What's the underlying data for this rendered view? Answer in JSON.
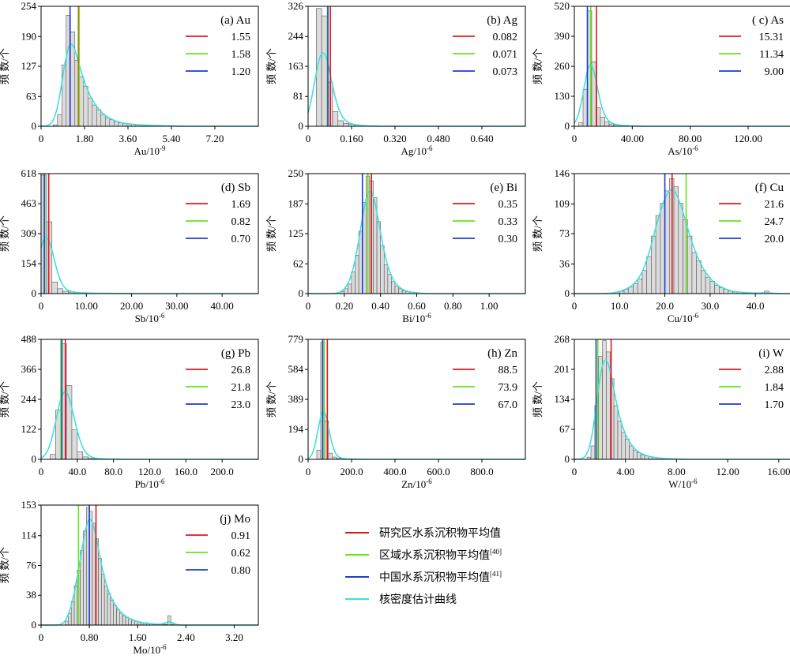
{
  "colors": {
    "study_mean": "#e8141c",
    "regional_mean": "#66e61a",
    "china_mean": "#1c3cd6",
    "kde": "#3ee0e0",
    "bar_fill": "#dcdcdc",
    "bar_stroke": "#555555"
  },
  "figure_legend": {
    "study_mean": "研究区水系沉积物平均值",
    "regional_mean": "区域水系沉积物平均值",
    "regional_ref": "[40]",
    "china_mean": "中国水系沉积物平均值",
    "china_ref": "[41]",
    "kde": "核密度估计曲线"
  },
  "chart_data": [
    {
      "type": "bar",
      "title": "(a) Au",
      "xlabel_base": "Au/10",
      "xlabel_exp": "-9",
      "ylabel": "频 数/个",
      "xlim": [
        0,
        9.0
      ],
      "ylim": [
        0,
        254
      ],
      "xticks": [
        "0",
        "1.80",
        "3.60",
        "5.40",
        "7.20"
      ],
      "xtick_values": [
        0,
        1.8,
        3.6,
        5.4,
        7.2
      ],
      "yticks": [
        "0",
        "63",
        "127",
        "190",
        "254"
      ],
      "ytick_values": [
        0,
        63,
        127,
        190,
        254
      ],
      "bin_start": 0.5,
      "bin_width": 0.18,
      "counts": [
        3,
        25,
        130,
        235,
        200,
        140,
        105,
        85,
        60,
        45,
        35,
        25,
        18,
        14,
        10,
        7,
        6,
        5,
        4,
        3,
        3,
        2,
        2,
        2,
        1,
        1,
        1,
        1
      ],
      "means": {
        "study": 1.55,
        "regional": 1.58,
        "china": 1.2
      },
      "mean_labels": [
        "1.55",
        "1.58",
        "1.20"
      ]
    },
    {
      "type": "bar",
      "title": "(b) Ag",
      "xlabel_base": "Ag/10",
      "xlabel_exp": "-6",
      "ylabel": "频 数/个",
      "xlim": [
        0,
        0.8
      ],
      "ylim": [
        0,
        326
      ],
      "xticks": [
        "0",
        "0.160",
        "0.320",
        "0.480",
        "0.640"
      ],
      "xtick_values": [
        0,
        0.16,
        0.32,
        0.48,
        0.64
      ],
      "yticks": [
        "0",
        "81",
        "163",
        "244",
        "326"
      ],
      "ytick_values": [
        0,
        81,
        163,
        244,
        326
      ],
      "bin_start": 0.03,
      "bin_width": 0.02,
      "counts": [
        320,
        300,
        120,
        40,
        15,
        8,
        5,
        3,
        2,
        1
      ],
      "means": {
        "study": 0.082,
        "regional": 0.071,
        "china": 0.073
      },
      "mean_labels": [
        "0.082",
        "0.071",
        "0.073"
      ]
    },
    {
      "type": "bar",
      "title": "( c) As",
      "xlabel_base": "As/10",
      "xlabel_exp": "-6",
      "ylabel": "频 数/个",
      "xlim": [
        0,
        150
      ],
      "ylim": [
        0,
        520
      ],
      "xticks": [
        "0",
        "40.00",
        "80.00",
        "120.00"
      ],
      "xtick_values": [
        0,
        40,
        80,
        120
      ],
      "yticks": [
        "0",
        "130",
        "260",
        "390",
        "520"
      ],
      "ytick_values": [
        0,
        130,
        260,
        390,
        520
      ],
      "bin_start": 3,
      "bin_width": 3,
      "counts": [
        15,
        160,
        500,
        280,
        80,
        40,
        20,
        10,
        6,
        4,
        3,
        2,
        1,
        1
      ],
      "means": {
        "study": 15.31,
        "regional": 11.34,
        "china": 9.0
      },
      "mean_labels": [
        "15.31",
        "11.34",
        "9.00"
      ]
    },
    {
      "type": "bar",
      "title": "(d) Sb",
      "xlabel_base": "Sb/10",
      "xlabel_exp": "-6",
      "ylabel": "频 数/个",
      "xlim": [
        0,
        48
      ],
      "ylim": [
        0,
        618
      ],
      "xticks": [
        "0",
        "10.00",
        "20.00",
        "30.00",
        "40.00"
      ],
      "xtick_values": [
        0,
        10,
        20,
        30,
        40
      ],
      "yticks": [
        "0",
        "154",
        "309",
        "463",
        "618"
      ],
      "ytick_values": [
        0,
        154,
        309,
        463,
        618
      ],
      "bin_start": 0,
      "bin_width": 1.2,
      "counts": [
        610,
        370,
        60,
        25,
        12,
        8,
        5,
        4,
        3,
        2,
        2,
        1,
        1,
        1,
        1,
        1
      ],
      "means": {
        "study": 1.69,
        "regional": 0.82,
        "china": 0.7
      },
      "mean_labels": [
        "1.69",
        "0.82",
        "0.70"
      ]
    },
    {
      "type": "bar",
      "title": "(e) Bi",
      "xlabel_base": "Bi/10",
      "xlabel_exp": "-6",
      "ylabel": "频 数/个",
      "xlim": [
        0,
        1.2
      ],
      "ylim": [
        0,
        250
      ],
      "xticks": [
        "0",
        "0.20",
        "0.40",
        "0.60",
        "0.80",
        "1.00"
      ],
      "xtick_values": [
        0,
        0.2,
        0.4,
        0.6,
        0.8,
        1.0
      ],
      "yticks": [
        "0",
        "62",
        "125",
        "187",
        "250"
      ],
      "ytick_values": [
        0,
        62,
        125,
        187,
        250
      ],
      "bin_start": 0.18,
      "bin_width": 0.02,
      "counts": [
        4,
        10,
        20,
        45,
        80,
        130,
        190,
        245,
        235,
        200,
        150,
        100,
        60,
        40,
        25,
        15,
        10,
        6,
        4,
        3,
        2,
        1
      ],
      "means": {
        "study": 0.35,
        "regional": 0.33,
        "china": 0.3
      },
      "mean_labels": [
        "0.35",
        "0.33",
        "0.30"
      ]
    },
    {
      "type": "bar",
      "title": "(f) Cu",
      "xlabel_base": "Cu/10",
      "xlabel_exp": "-6",
      "ylabel": "频 数/个",
      "xlim": [
        0,
        48
      ],
      "ylim": [
        0,
        146
      ],
      "xticks": [
        "0",
        "10.0",
        "20.0",
        "30.0",
        "40.0"
      ],
      "xtick_values": [
        0,
        10,
        20,
        30,
        40
      ],
      "yticks": [
        "0",
        "36",
        "73",
        "109",
        "146"
      ],
      "ytick_values": [
        0,
        36,
        73,
        109,
        146
      ],
      "bin_start": 9,
      "bin_width": 1,
      "counts": [
        2,
        3,
        5,
        8,
        12,
        18,
        28,
        45,
        70,
        95,
        110,
        125,
        140,
        130,
        110,
        90,
        70,
        50,
        40,
        28,
        20,
        15,
        10,
        7,
        5,
        3,
        2,
        2,
        1,
        1,
        1,
        0,
        0,
        3
      ],
      "means": {
        "study": 21.6,
        "regional": 24.7,
        "china": 20.0
      },
      "mean_labels": [
        "21.6",
        "24.7",
        "20.0"
      ]
    },
    {
      "type": "bar",
      "title": "(g) Pb",
      "xlabel_base": "Pb/10",
      "xlabel_exp": "-6",
      "ylabel": "频 数/个",
      "xlim": [
        0,
        240
      ],
      "ylim": [
        0,
        488
      ],
      "xticks": [
        "0",
        "40.0",
        "80.0",
        "120.0",
        "160.0",
        "200.0"
      ],
      "xtick_values": [
        0,
        40,
        80,
        120,
        160,
        200
      ],
      "yticks": [
        "0",
        "122",
        "244",
        "366",
        "488"
      ],
      "ytick_values": [
        0,
        122,
        244,
        366,
        488
      ],
      "bin_start": 10,
      "bin_width": 6,
      "counts": [
        20,
        200,
        470,
        300,
        120,
        30,
        10,
        5,
        3,
        2,
        1,
        1
      ],
      "means": {
        "study": 26.8,
        "regional": 21.8,
        "china": 23.0
      },
      "mean_labels": [
        "26.8",
        "21.8",
        "23.0"
      ]
    },
    {
      "type": "bar",
      "title": "(h) Zn",
      "xlabel_base": "Zn/10",
      "xlabel_exp": "-6",
      "ylabel": "频 数/个",
      "xlim": [
        0,
        1000
      ],
      "ylim": [
        0,
        779
      ],
      "xticks": [
        "0",
        "200.0",
        "400.0",
        "600.0",
        "800.0"
      ],
      "xtick_values": [
        0,
        200,
        400,
        600,
        800
      ],
      "yticks": [
        "0",
        "194",
        "389",
        "584",
        "779"
      ],
      "ytick_values": [
        0,
        194,
        389,
        584,
        779
      ],
      "bin_start": 40,
      "bin_width": 18,
      "counts": [
        60,
        760,
        250,
        40,
        15,
        8,
        5,
        3,
        2,
        1
      ],
      "means": {
        "study": 88.5,
        "regional": 73.9,
        "china": 67.0
      },
      "mean_labels": [
        "88.5",
        "73.9",
        "67.0"
      ]
    },
    {
      "type": "bar",
      "title": "(i) W",
      "xlabel_base": "W/10",
      "xlabel_exp": "-6",
      "ylabel": "频 数/个",
      "xlim": [
        0,
        17
      ],
      "ylim": [
        0,
        268
      ],
      "xticks": [
        "0",
        "4.00",
        "8.00",
        "12.00",
        "16.00"
      ],
      "xtick_values": [
        0,
        4,
        8,
        12,
        16
      ],
      "yticks": [
        "0",
        "67",
        "134",
        "201",
        "268"
      ],
      "ytick_values": [
        0,
        67,
        134,
        201,
        268
      ],
      "bin_start": 1.0,
      "bin_width": 0.3,
      "counts": [
        5,
        30,
        120,
        230,
        265,
        240,
        180,
        120,
        85,
        60,
        45,
        30,
        20,
        15,
        10,
        8,
        6,
        4,
        3,
        2,
        2,
        1,
        1,
        1
      ],
      "means": {
        "study": 2.88,
        "regional": 1.84,
        "china": 1.7
      },
      "mean_labels": [
        "2.88",
        "1.84",
        "1.70"
      ]
    },
    {
      "type": "bar",
      "title": "(j) Mo",
      "xlabel_base": "Mo/10",
      "xlabel_exp": "-6",
      "ylabel": "频 数/个",
      "xlim": [
        0,
        3.6
      ],
      "ylim": [
        0,
        153
      ],
      "xticks": [
        "0",
        "0.80",
        "1.60",
        "2.40",
        "3.20"
      ],
      "xtick_values": [
        0,
        0.8,
        1.6,
        2.4,
        3.2
      ],
      "yticks": [
        "0",
        "38",
        "76",
        "114",
        "153"
      ],
      "ytick_values": [
        0,
        38,
        76,
        114,
        153
      ],
      "bin_start": 0.4,
      "bin_width": 0.05,
      "counts": [
        5,
        15,
        30,
        50,
        70,
        95,
        120,
        150,
        145,
        130,
        110,
        85,
        65,
        50,
        40,
        32,
        25,
        20,
        15,
        12,
        10,
        8,
        6,
        5,
        4,
        3,
        3,
        2,
        2,
        1,
        1,
        1,
        1,
        1,
        12,
        1
      ],
      "means": {
        "study": 0.91,
        "regional": 0.62,
        "china": 0.8
      },
      "mean_labels": [
        "0.91",
        "0.62",
        "0.80"
      ]
    }
  ]
}
